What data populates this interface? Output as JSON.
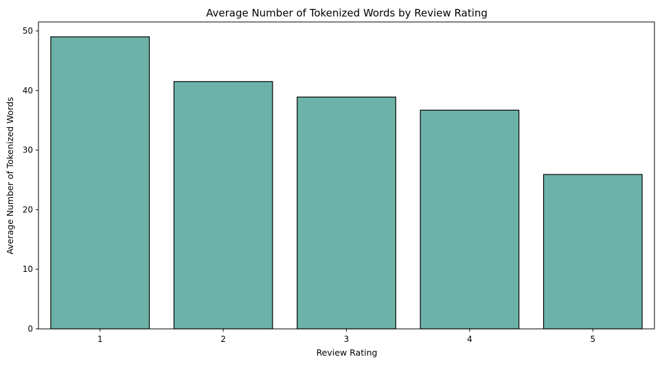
{
  "chart_data": {
    "type": "bar",
    "title": "Average Number of Tokenized Words by Review Rating",
    "xlabel": "Review Rating",
    "ylabel": "Average Number of Tokenized Words",
    "categories": [
      "1",
      "2",
      "3",
      "4",
      "5"
    ],
    "values": [
      49.0,
      41.5,
      38.9,
      36.7,
      25.9
    ],
    "ylim": [
      0,
      51.5
    ],
    "yticks": [
      0,
      10,
      20,
      30,
      40,
      50
    ],
    "grid": false,
    "bar_color": "#6cb2a8",
    "bar_edge_color": "#000000"
  }
}
